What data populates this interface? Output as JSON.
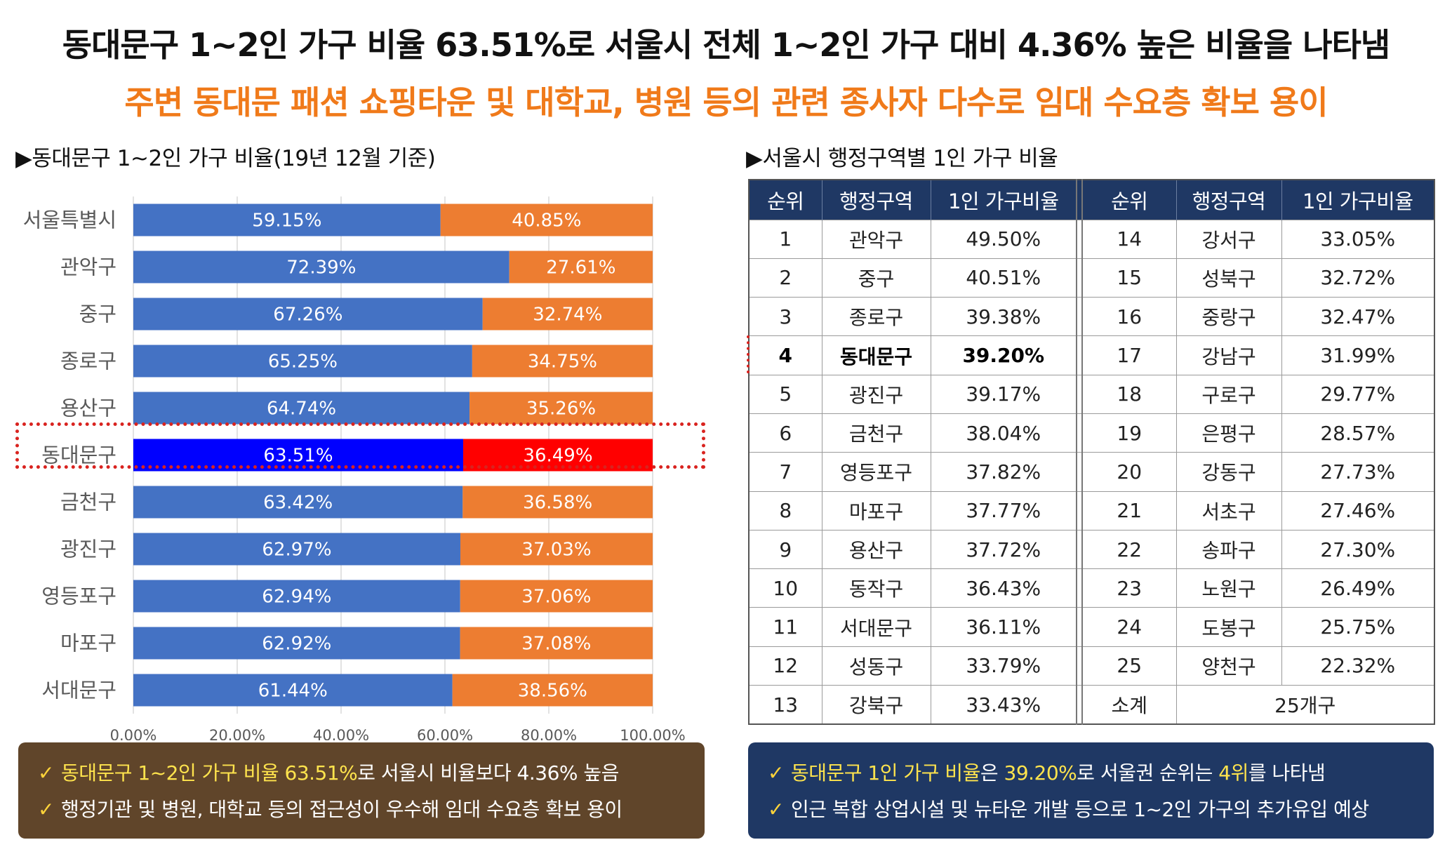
{
  "headline": {
    "line1": "동대문구 1~2인 가구 비율 63.51%로 서울시 전체 1~2인 가구 대비 4.36% 높은 비율을 나타냄",
    "line2": "주변 동대문 패션 쇼핑타운 및 대학교, 병원 등의 관련 종사자 다수로 임대 수요층 확보 용이"
  },
  "left_section": {
    "title": "▶동대문구 1~2인 가구 비율(19년 12월 기준)"
  },
  "right_section": {
    "title": "▶서울시 행정구역별 1인 가구 비율"
  },
  "chart_data": {
    "type": "bar",
    "orientation": "horizontal",
    "stacked": true,
    "categories": [
      "서울특별시",
      "관악구",
      "중구",
      "종로구",
      "용산구",
      "동대문구",
      "금천구",
      "광진구",
      "영등포구",
      "마포구",
      "서대문구"
    ],
    "series": [
      {
        "values": [
          59.15,
          72.39,
          67.26,
          65.25,
          64.74,
          63.51,
          63.42,
          62.97,
          62.94,
          62.92,
          61.44
        ],
        "labels": [
          "59.15%",
          "72.39%",
          "67.26%",
          "65.25%",
          "64.74%",
          "63.51%",
          "63.42%",
          "62.97%",
          "62.94%",
          "62.92%",
          "61.44%"
        ]
      },
      {
        "values": [
          40.85,
          27.61,
          32.74,
          34.75,
          35.26,
          36.49,
          36.58,
          37.03,
          37.06,
          37.08,
          38.56
        ],
        "labels": [
          "40.85%",
          "27.61%",
          "32.74%",
          "34.75%",
          "35.26%",
          "36.49%",
          "36.58%",
          "37.03%",
          "37.06%",
          "37.08%",
          "38.56%"
        ]
      }
    ],
    "highlight_category": "동대문구",
    "xlim": [
      0,
      100
    ],
    "xticks": [
      "0.00%",
      "20.00%",
      "40.00%",
      "60.00%",
      "80.00%",
      "100.00%"
    ],
    "grid": true,
    "colors": {
      "series1": "#4472c4",
      "series2": "#ed7d31",
      "highlight1": "#0000ff",
      "highlight2": "#ff0000"
    }
  },
  "table": {
    "headers": [
      "순위",
      "행정구역",
      "1인 가구비율",
      "순위",
      "행정구역",
      "1인 가구비율"
    ],
    "rows": [
      [
        "1",
        "관악구",
        "49.50%",
        "14",
        "강서구",
        "33.05%"
      ],
      [
        "2",
        "중구",
        "40.51%",
        "15",
        "성북구",
        "32.72%"
      ],
      [
        "3",
        "종로구",
        "39.38%",
        "16",
        "중랑구",
        "32.47%"
      ],
      [
        "4",
        "동대문구",
        "39.20%",
        "17",
        "강남구",
        "31.99%"
      ],
      [
        "5",
        "광진구",
        "39.17%",
        "18",
        "구로구",
        "29.77%"
      ],
      [
        "6",
        "금천구",
        "38.04%",
        "19",
        "은평구",
        "28.57%"
      ],
      [
        "7",
        "영등포구",
        "37.82%",
        "20",
        "강동구",
        "27.73%"
      ],
      [
        "8",
        "마포구",
        "37.77%",
        "21",
        "서초구",
        "27.46%"
      ],
      [
        "9",
        "용산구",
        "37.72%",
        "22",
        "송파구",
        "27.30%"
      ],
      [
        "10",
        "동작구",
        "36.43%",
        "23",
        "노원구",
        "26.49%"
      ],
      [
        "11",
        "서대문구",
        "36.11%",
        "24",
        "도봉구",
        "25.75%"
      ],
      [
        "12",
        "성동구",
        "33.79%",
        "25",
        "양천구",
        "22.32%"
      ]
    ],
    "last_row": [
      "13",
      "강북구",
      "33.43%",
      "소계",
      "25개구"
    ],
    "highlight_row": 3
  },
  "left_note": {
    "line1_a": "동대문구 1~2인 가구 비율 63.51%",
    "line1_b": "로 서울시 비율보다 4.36% 높음",
    "line2": "행정기관 및 병원, 대학교 등의 접근성이 우수해 임대 수요층 확보 용이"
  },
  "right_note": {
    "line1_a": "동대문구 1인 가구 비율",
    "line1_b": "은 ",
    "line1_c": "39.20%",
    "line1_d": "로 서울권 순위는 ",
    "line1_e": "4위",
    "line1_f": "를 나타냄",
    "line2": "인근 복합 상업시설 및 뉴타운 개발 등으로 1~2인 가구의 추가유입 예상"
  },
  "check_glyph": "✓"
}
